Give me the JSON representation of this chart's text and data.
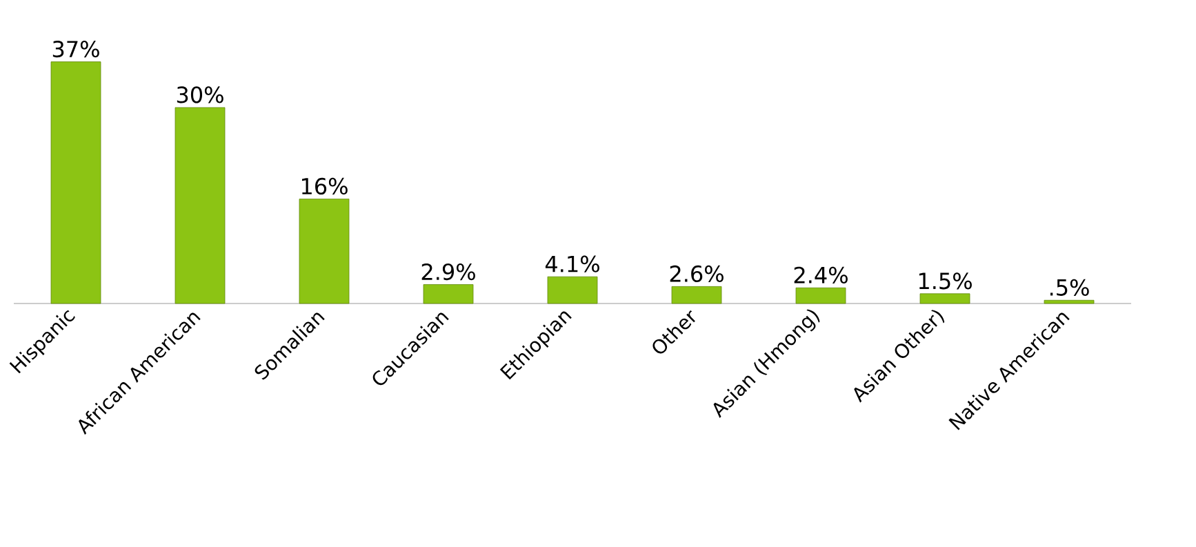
{
  "chart_data": {
    "type": "bar",
    "categories": [
      "Hispanic",
      "African American",
      "Somalian",
      "Caucasian",
      "Ethiopian",
      "Other",
      "Asian (Hmong)",
      "Asian Other)",
      "Native American"
    ],
    "values": [
      37,
      30,
      16,
      2.9,
      4.1,
      2.6,
      2.4,
      1.5,
      0.5
    ],
    "value_labels": [
      "37%",
      "30%",
      "16%",
      "2.9%",
      "4.1%",
      "2.6%",
      "2.4%",
      "1.5%",
      ".5%"
    ],
    "color": "#8cc414"
  }
}
